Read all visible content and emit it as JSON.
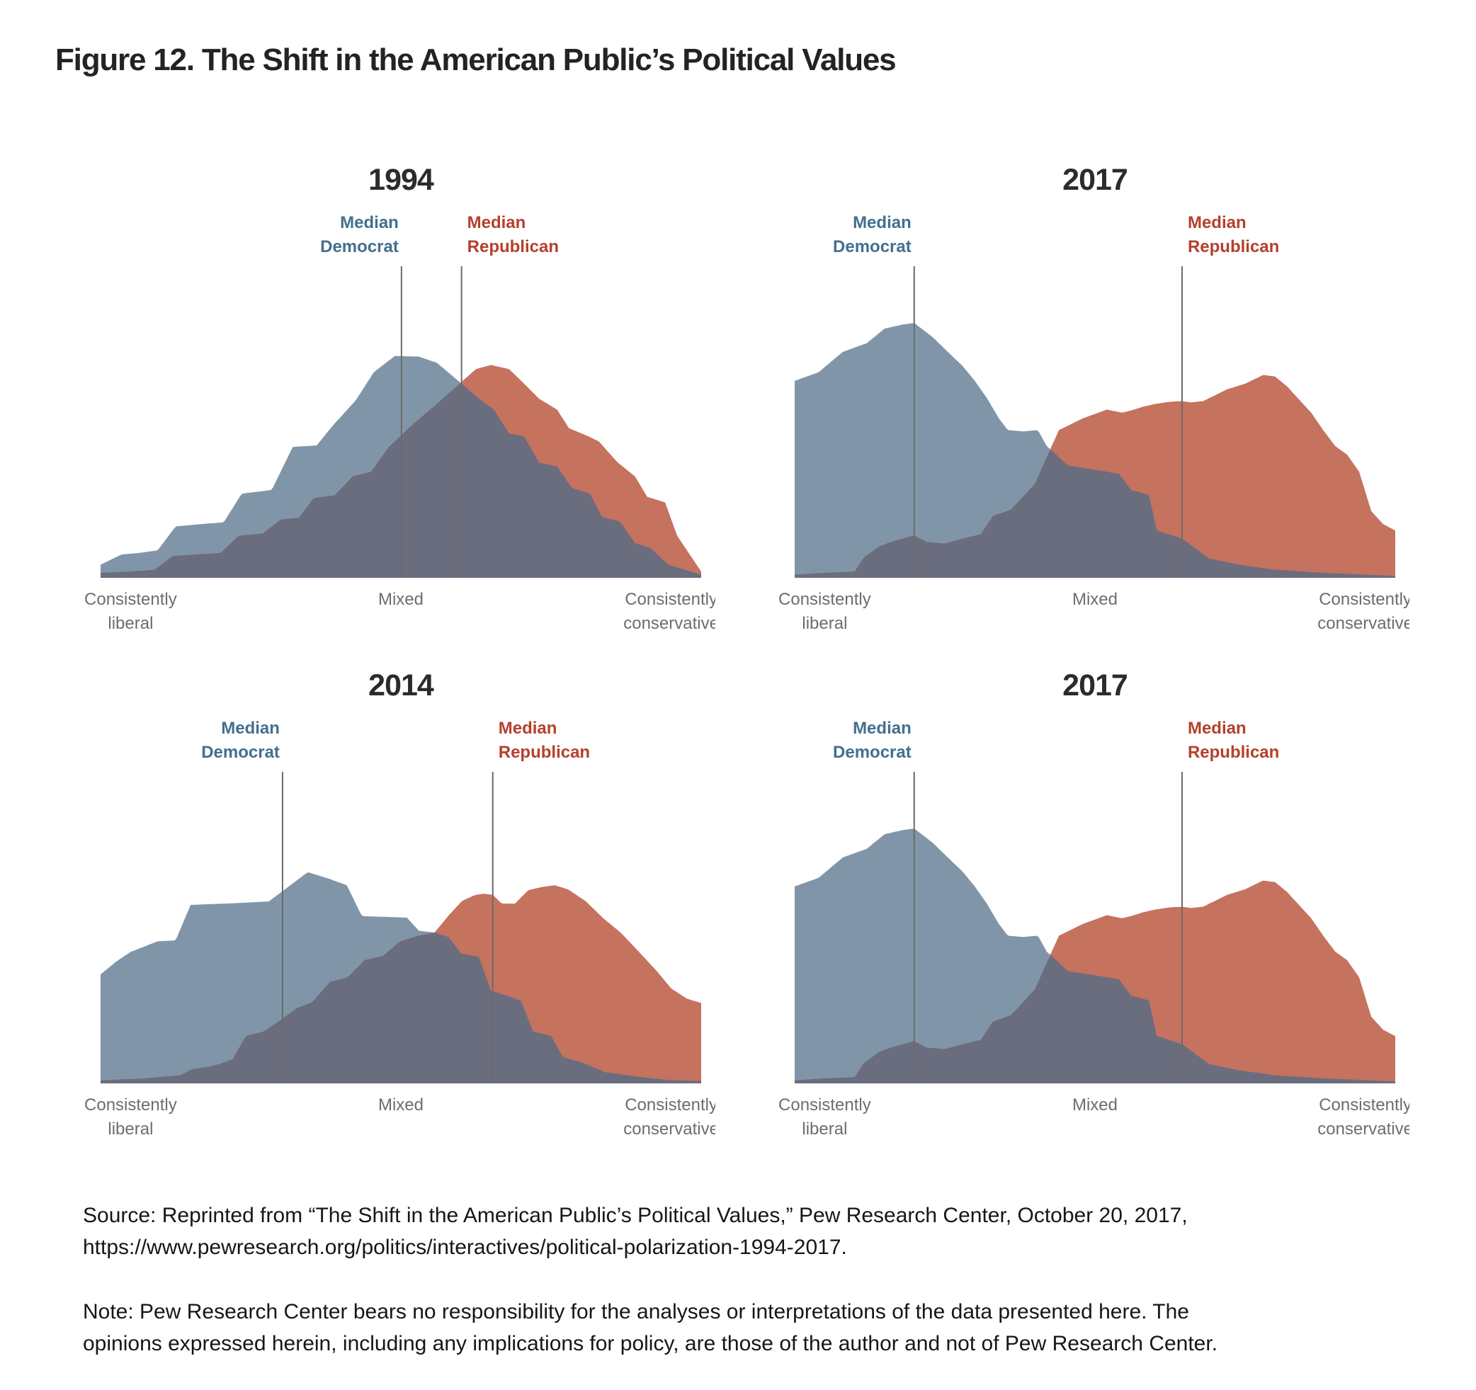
{
  "figure_title": "Figure 12. The Shift in the American Public’s Political Values",
  "source": {
    "lines": [
      "Source: Reprinted from “The Shift in the American Public’s Political Values,” Pew Research Center, October 20, 2017,",
      "https://www.pewresearch.org/politics/interactives/political-polarization-1994-2017."
    ]
  },
  "note": {
    "lines": [
      "Note: Pew Research Center bears no responsibility for the analyses or interpretations of the data presented here. The",
      "opinions expressed herein, including any implications for policy, are those of the author and not of Pew Research Center."
    ]
  },
  "colors": {
    "democrat_fill": "#8096a8",
    "republican_fill": "#c5725f",
    "overlap_fill": "#6a6d7e",
    "democrat_label": "#43708e",
    "republican_label": "#b5402c",
    "median_line": "#6b6b6b",
    "axis_label": "#6d6d70",
    "year_title": "#2b2b2b",
    "background": "#ffffff"
  },
  "chart_data": {
    "type": "area",
    "description": "Distribution of Democrats and Republicans on a 10-item scale of political values, from consistently liberal to consistently conservative. Heights are fractions of plot height at x positions 0 (consistently liberal) to 1 (consistently conservative). Shaded overlap where distributions coincide.",
    "x_axis_labels": {
      "left": [
        "Consistently",
        "liberal"
      ],
      "center": "Mixed",
      "right": [
        "Consistently",
        "conservative"
      ]
    },
    "legend": {
      "median_democrat_label": [
        "Median",
        "Democrat"
      ],
      "median_republican_label": [
        "Median",
        "Republican"
      ]
    },
    "charts": [
      {
        "id": "1994",
        "title": "1994",
        "median_democrat_x": 0.501,
        "median_republican_x": 0.601,
        "democrat_points": [
          [
            0.0,
            0.042
          ],
          [
            0.035,
            0.075
          ],
          [
            0.065,
            0.08
          ],
          [
            0.095,
            0.088
          ],
          [
            0.125,
            0.165
          ],
          [
            0.165,
            0.172
          ],
          [
            0.205,
            0.178
          ],
          [
            0.235,
            0.27
          ],
          [
            0.285,
            0.282
          ],
          [
            0.32,
            0.42
          ],
          [
            0.36,
            0.425
          ],
          [
            0.385,
            0.485
          ],
          [
            0.425,
            0.57
          ],
          [
            0.455,
            0.66
          ],
          [
            0.49,
            0.712
          ],
          [
            0.53,
            0.71
          ],
          [
            0.56,
            0.69
          ],
          [
            0.6,
            0.625
          ],
          [
            0.63,
            0.575
          ],
          [
            0.655,
            0.54
          ],
          [
            0.68,
            0.463
          ],
          [
            0.705,
            0.455
          ],
          [
            0.73,
            0.37
          ],
          [
            0.76,
            0.357
          ],
          [
            0.785,
            0.288
          ],
          [
            0.815,
            0.27
          ],
          [
            0.835,
            0.195
          ],
          [
            0.865,
            0.181
          ],
          [
            0.89,
            0.111
          ],
          [
            0.915,
            0.097
          ],
          [
            0.945,
            0.042
          ],
          [
            1.0,
            0.01
          ]
        ],
        "republican_points": [
          [
            0.0,
            0.016
          ],
          [
            0.05,
            0.02
          ],
          [
            0.09,
            0.026
          ],
          [
            0.12,
            0.07
          ],
          [
            0.16,
            0.075
          ],
          [
            0.2,
            0.08
          ],
          [
            0.23,
            0.135
          ],
          [
            0.27,
            0.142
          ],
          [
            0.3,
            0.187
          ],
          [
            0.33,
            0.193
          ],
          [
            0.355,
            0.256
          ],
          [
            0.39,
            0.265
          ],
          [
            0.42,
            0.326
          ],
          [
            0.45,
            0.34
          ],
          [
            0.48,
            0.42
          ],
          [
            0.52,
            0.493
          ],
          [
            0.555,
            0.55
          ],
          [
            0.59,
            0.61
          ],
          [
            0.625,
            0.67
          ],
          [
            0.65,
            0.683
          ],
          [
            0.68,
            0.67
          ],
          [
            0.7,
            0.633
          ],
          [
            0.73,
            0.575
          ],
          [
            0.76,
            0.54
          ],
          [
            0.78,
            0.48
          ],
          [
            0.81,
            0.456
          ],
          [
            0.83,
            0.437
          ],
          [
            0.86,
            0.372
          ],
          [
            0.89,
            0.325
          ],
          [
            0.91,
            0.26
          ],
          [
            0.94,
            0.242
          ],
          [
            0.96,
            0.135
          ],
          [
            1.0,
            0.02
          ]
        ]
      },
      {
        "id": "2017-top",
        "title": "2017",
        "median_democrat_x": 0.199,
        "median_republican_x": 0.645,
        "democrat_points": [
          [
            0.0,
            0.632
          ],
          [
            0.04,
            0.66
          ],
          [
            0.08,
            0.725
          ],
          [
            0.12,
            0.753
          ],
          [
            0.15,
            0.8
          ],
          [
            0.18,
            0.813
          ],
          [
            0.199,
            0.818
          ],
          [
            0.23,
            0.772
          ],
          [
            0.255,
            0.725
          ],
          [
            0.28,
            0.679
          ],
          [
            0.3,
            0.632
          ],
          [
            0.32,
            0.577
          ],
          [
            0.34,
            0.512
          ],
          [
            0.355,
            0.474
          ],
          [
            0.38,
            0.47
          ],
          [
            0.405,
            0.474
          ],
          [
            0.42,
            0.422
          ],
          [
            0.432,
            0.402
          ],
          [
            0.455,
            0.36
          ],
          [
            0.49,
            0.35
          ],
          [
            0.54,
            0.334
          ],
          [
            0.56,
            0.282
          ],
          [
            0.59,
            0.266
          ],
          [
            0.603,
            0.152
          ],
          [
            0.645,
            0.126
          ],
          [
            0.69,
            0.062
          ],
          [
            0.74,
            0.042
          ],
          [
            0.8,
            0.026
          ],
          [
            0.88,
            0.016
          ],
          [
            1.0,
            0.006
          ]
        ],
        "republican_points": [
          [
            0.0,
            0.01
          ],
          [
            0.05,
            0.016
          ],
          [
            0.1,
            0.02
          ],
          [
            0.115,
            0.065
          ],
          [
            0.14,
            0.1
          ],
          [
            0.16,
            0.115
          ],
          [
            0.199,
            0.136
          ],
          [
            0.22,
            0.115
          ],
          [
            0.25,
            0.11
          ],
          [
            0.28,
            0.126
          ],
          [
            0.31,
            0.14
          ],
          [
            0.33,
            0.198
          ],
          [
            0.36,
            0.219
          ],
          [
            0.38,
            0.26
          ],
          [
            0.4,
            0.302
          ],
          [
            0.425,
            0.41
          ],
          [
            0.44,
            0.474
          ],
          [
            0.46,
            0.493
          ],
          [
            0.48,
            0.512
          ],
          [
            0.52,
            0.54
          ],
          [
            0.545,
            0.53
          ],
          [
            0.56,
            0.537
          ],
          [
            0.58,
            0.549
          ],
          [
            0.6,
            0.558
          ],
          [
            0.625,
            0.565
          ],
          [
            0.645,
            0.567
          ],
          [
            0.66,
            0.563
          ],
          [
            0.68,
            0.567
          ],
          [
            0.7,
            0.586
          ],
          [
            0.72,
            0.605
          ],
          [
            0.75,
            0.623
          ],
          [
            0.78,
            0.651
          ],
          [
            0.8,
            0.646
          ],
          [
            0.82,
            0.614
          ],
          [
            0.84,
            0.572
          ],
          [
            0.86,
            0.53
          ],
          [
            0.88,
            0.474
          ],
          [
            0.9,
            0.423
          ],
          [
            0.92,
            0.395
          ],
          [
            0.94,
            0.34
          ],
          [
            0.96,
            0.214
          ],
          [
            0.98,
            0.172
          ],
          [
            1.0,
            0.152
          ]
        ]
      },
      {
        "id": "2014",
        "title": "2014",
        "median_democrat_x": 0.303,
        "median_republican_x": 0.653,
        "democrat_points": [
          [
            0.0,
            0.35
          ],
          [
            0.026,
            0.391
          ],
          [
            0.05,
            0.422
          ],
          [
            0.095,
            0.456
          ],
          [
            0.125,
            0.459
          ],
          [
            0.15,
            0.573
          ],
          [
            0.22,
            0.578
          ],
          [
            0.28,
            0.584
          ],
          [
            0.305,
            0.62
          ],
          [
            0.345,
            0.678
          ],
          [
            0.38,
            0.657
          ],
          [
            0.41,
            0.636
          ],
          [
            0.435,
            0.537
          ],
          [
            0.51,
            0.532
          ],
          [
            0.53,
            0.49
          ],
          [
            0.556,
            0.484
          ],
          [
            0.58,
            0.469
          ],
          [
            0.6,
            0.417
          ],
          [
            0.63,
            0.406
          ],
          [
            0.65,
            0.298
          ],
          [
            0.68,
            0.279
          ],
          [
            0.7,
            0.266
          ],
          [
            0.72,
            0.167
          ],
          [
            0.75,
            0.152
          ],
          [
            0.77,
            0.084
          ],
          [
            0.8,
            0.068
          ],
          [
            0.84,
            0.036
          ],
          [
            0.9,
            0.02
          ],
          [
            0.95,
            0.01
          ],
          [
            1.0,
            0.008
          ]
        ],
        "republican_points": [
          [
            0.0,
            0.01
          ],
          [
            0.073,
            0.016
          ],
          [
            0.132,
            0.026
          ],
          [
            0.154,
            0.047
          ],
          [
            0.176,
            0.052
          ],
          [
            0.198,
            0.062
          ],
          [
            0.22,
            0.078
          ],
          [
            0.242,
            0.152
          ],
          [
            0.272,
            0.167
          ],
          [
            0.301,
            0.205
          ],
          [
            0.327,
            0.242
          ],
          [
            0.352,
            0.26
          ],
          [
            0.382,
            0.326
          ],
          [
            0.411,
            0.34
          ],
          [
            0.44,
            0.396
          ],
          [
            0.47,
            0.409
          ],
          [
            0.499,
            0.456
          ],
          [
            0.529,
            0.474
          ],
          [
            0.556,
            0.484
          ],
          [
            0.58,
            0.54
          ],
          [
            0.602,
            0.586
          ],
          [
            0.624,
            0.605
          ],
          [
            0.639,
            0.609
          ],
          [
            0.653,
            0.605
          ],
          [
            0.668,
            0.577
          ],
          [
            0.69,
            0.577
          ],
          [
            0.712,
            0.62
          ],
          [
            0.734,
            0.63
          ],
          [
            0.756,
            0.636
          ],
          [
            0.778,
            0.623
          ],
          [
            0.807,
            0.586
          ],
          [
            0.837,
            0.53
          ],
          [
            0.866,
            0.484
          ],
          [
            0.896,
            0.423
          ],
          [
            0.925,
            0.363
          ],
          [
            0.95,
            0.305
          ],
          [
            0.976,
            0.272
          ],
          [
            1.0,
            0.258
          ]
        ]
      },
      {
        "id": "2017-bottom",
        "title": "2017",
        "median_democrat_x": 0.199,
        "median_republican_x": 0.645,
        "democrat_points": [
          [
            0.0,
            0.632
          ],
          [
            0.04,
            0.66
          ],
          [
            0.08,
            0.725
          ],
          [
            0.12,
            0.753
          ],
          [
            0.15,
            0.8
          ],
          [
            0.18,
            0.813
          ],
          [
            0.199,
            0.818
          ],
          [
            0.23,
            0.772
          ],
          [
            0.255,
            0.725
          ],
          [
            0.28,
            0.679
          ],
          [
            0.3,
            0.632
          ],
          [
            0.32,
            0.577
          ],
          [
            0.34,
            0.512
          ],
          [
            0.355,
            0.474
          ],
          [
            0.38,
            0.47
          ],
          [
            0.405,
            0.474
          ],
          [
            0.42,
            0.422
          ],
          [
            0.432,
            0.402
          ],
          [
            0.455,
            0.36
          ],
          [
            0.49,
            0.35
          ],
          [
            0.54,
            0.334
          ],
          [
            0.56,
            0.282
          ],
          [
            0.59,
            0.266
          ],
          [
            0.603,
            0.152
          ],
          [
            0.645,
            0.126
          ],
          [
            0.69,
            0.062
          ],
          [
            0.74,
            0.042
          ],
          [
            0.8,
            0.026
          ],
          [
            0.88,
            0.016
          ],
          [
            1.0,
            0.006
          ]
        ],
        "republican_points": [
          [
            0.0,
            0.01
          ],
          [
            0.05,
            0.016
          ],
          [
            0.1,
            0.02
          ],
          [
            0.115,
            0.065
          ],
          [
            0.14,
            0.1
          ],
          [
            0.16,
            0.115
          ],
          [
            0.199,
            0.136
          ],
          [
            0.22,
            0.115
          ],
          [
            0.25,
            0.11
          ],
          [
            0.28,
            0.126
          ],
          [
            0.31,
            0.14
          ],
          [
            0.33,
            0.198
          ],
          [
            0.36,
            0.219
          ],
          [
            0.38,
            0.26
          ],
          [
            0.4,
            0.302
          ],
          [
            0.425,
            0.41
          ],
          [
            0.44,
            0.474
          ],
          [
            0.46,
            0.493
          ],
          [
            0.48,
            0.512
          ],
          [
            0.52,
            0.54
          ],
          [
            0.545,
            0.53
          ],
          [
            0.56,
            0.537
          ],
          [
            0.58,
            0.549
          ],
          [
            0.6,
            0.558
          ],
          [
            0.625,
            0.565
          ],
          [
            0.645,
            0.567
          ],
          [
            0.66,
            0.563
          ],
          [
            0.68,
            0.567
          ],
          [
            0.7,
            0.586
          ],
          [
            0.72,
            0.605
          ],
          [
            0.75,
            0.623
          ],
          [
            0.78,
            0.651
          ],
          [
            0.8,
            0.646
          ],
          [
            0.82,
            0.614
          ],
          [
            0.84,
            0.572
          ],
          [
            0.86,
            0.53
          ],
          [
            0.88,
            0.474
          ],
          [
            0.9,
            0.423
          ],
          [
            0.92,
            0.395
          ],
          [
            0.94,
            0.34
          ],
          [
            0.96,
            0.214
          ],
          [
            0.98,
            0.172
          ],
          [
            1.0,
            0.152
          ]
        ]
      }
    ]
  }
}
